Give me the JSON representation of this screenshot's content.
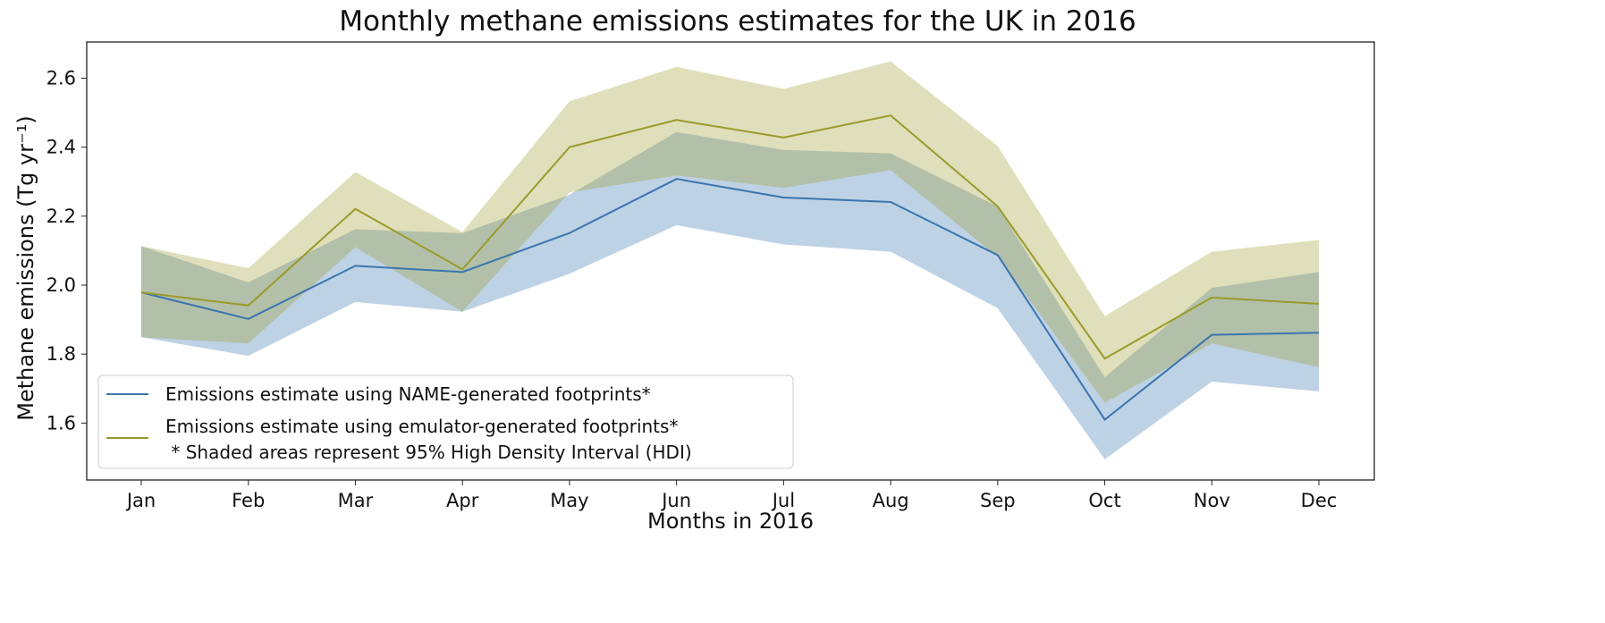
{
  "chart_data": {
    "type": "line",
    "title": "Monthly methane emissions estimates for the UK in 2016",
    "xlabel": "Months in 2016",
    "ylabel": "Methane emissions (Tg yr⁻¹)",
    "categories": [
      "Jan",
      "Feb",
      "Mar",
      "Apr",
      "May",
      "Jun",
      "Jul",
      "Aug",
      "Sep",
      "Oct",
      "Nov",
      "Dec"
    ],
    "ylim": [
      1.435,
      2.705
    ],
    "yticks": [
      1.6,
      1.8,
      2.0,
      2.2,
      2.4,
      2.6
    ],
    "ytick_labels": [
      "1.6",
      "1.8",
      "2.0",
      "2.2",
      "2.4",
      "2.6"
    ],
    "grid": false,
    "legend_placement": "lower-left",
    "legend_note": " * Shaded areas represent 95% High Density Interval (HDI)",
    "series": [
      {
        "name": "Emissions estimate using NAME-generated footprints*",
        "color": "#3b75af",
        "values": [
          1.979,
          1.902,
          2.056,
          2.038,
          2.151,
          2.308,
          2.254,
          2.241,
          2.087,
          1.61,
          1.856,
          1.862
        ],
        "hdi_lower": [
          1.849,
          1.795,
          1.951,
          1.923,
          2.033,
          2.174,
          2.118,
          2.097,
          1.933,
          1.495,
          1.72,
          1.692
        ],
        "hdi_upper": [
          2.113,
          2.008,
          2.162,
          2.151,
          2.262,
          2.444,
          2.392,
          2.382,
          2.228,
          1.733,
          1.992,
          2.038
        ]
      },
      {
        "name": "Emissions estimate using emulator-generated footprints*",
        "color": "#9a9a2c",
        "values": [
          1.979,
          1.941,
          2.221,
          2.046,
          2.4,
          2.479,
          2.428,
          2.492,
          2.228,
          1.787,
          1.964,
          1.946
        ],
        "hdi_lower": [
          1.849,
          1.831,
          2.11,
          1.923,
          2.269,
          2.318,
          2.282,
          2.333,
          2.082,
          1.659,
          1.831,
          1.762
        ],
        "hdi_upper": [
          2.113,
          2.049,
          2.328,
          2.154,
          2.533,
          2.633,
          2.569,
          2.649,
          2.403,
          1.91,
          2.097,
          2.131
        ]
      }
    ]
  }
}
